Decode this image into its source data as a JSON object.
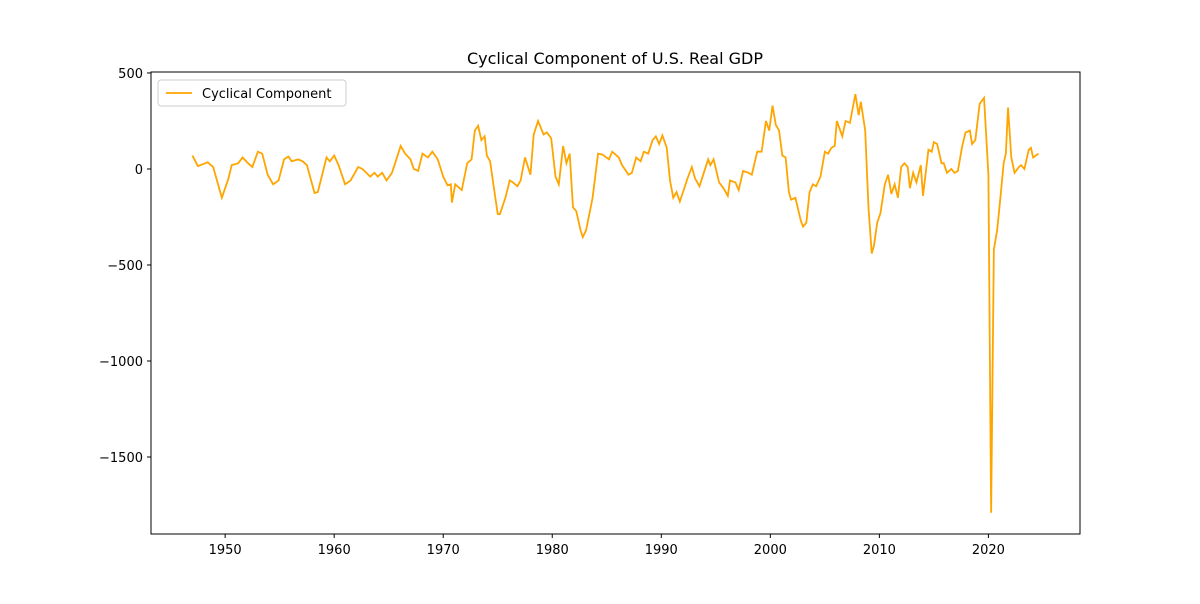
{
  "chart_data": {
    "type": "line",
    "title": "Cyclical Component of U.S. Real GDP",
    "x": [
      1947.0,
      1947.5,
      1948.4,
      1948.9,
      1949.4,
      1949.7,
      1950.3,
      1950.6,
      1951.2,
      1951.6,
      1952.1,
      1952.5,
      1953.0,
      1953.4,
      1953.9,
      1954.4,
      1954.9,
      1955.4,
      1955.8,
      1956.1,
      1956.7,
      1957.1,
      1957.5,
      1958.2,
      1958.5,
      1959.3,
      1959.6,
      1960.0,
      1960.4,
      1961.0,
      1961.5,
      1962.2,
      1962.6,
      1963.3,
      1963.7,
      1964.0,
      1964.4,
      1964.8,
      1965.3,
      1966.1,
      1966.5,
      1967.0,
      1967.3,
      1967.7,
      1968.1,
      1968.6,
      1969.0,
      1969.5,
      1970.0,
      1970.4,
      1970.7,
      1970.8,
      1971.1,
      1971.7,
      1972.2,
      1972.6,
      1972.9,
      1973.2,
      1973.5,
      1973.8,
      1974.0,
      1974.3,
      1974.6,
      1975.0,
      1975.2,
      1975.7,
      1976.1,
      1976.4,
      1976.8,
      1977.1,
      1977.5,
      1978.0,
      1978.3,
      1978.7,
      1979.2,
      1979.5,
      1979.9,
      1980.3,
      1980.6,
      1981.0,
      1981.3,
      1981.6,
      1981.9,
      1982.2,
      1982.6,
      1982.8,
      1983.1,
      1983.7,
      1984.2,
      1984.6,
      1985.2,
      1985.5,
      1986.1,
      1986.4,
      1987.0,
      1987.3,
      1987.7,
      1988.1,
      1988.4,
      1988.8,
      1989.2,
      1989.5,
      1989.8,
      1990.1,
      1990.5,
      1990.8,
      1991.1,
      1991.4,
      1991.7,
      1992.4,
      1992.8,
      1993.1,
      1993.5,
      1993.9,
      1994.3,
      1994.5,
      1994.8,
      1995.3,
      1995.7,
      1996.1,
      1996.3,
      1996.8,
      1997.1,
      1997.5,
      1998.0,
      1998.3,
      1998.8,
      1999.2,
      1999.6,
      1999.9,
      2000.2,
      2000.5,
      2000.8,
      2001.1,
      2001.4,
      2001.7,
      2001.9,
      2002.3,
      2002.8,
      2003.0,
      2003.3,
      2003.6,
      2003.9,
      2004.2,
      2004.6,
      2005.0,
      2005.3,
      2005.6,
      2005.9,
      2006.1,
      2006.6,
      2006.9,
      2007.3,
      2007.8,
      2008.1,
      2008.3,
      2008.7,
      2009.0,
      2009.3,
      2009.5,
      2009.8,
      2010.1,
      2010.5,
      2010.8,
      2011.1,
      2011.4,
      2011.7,
      2012.0,
      2012.3,
      2012.6,
      2012.8,
      2013.1,
      2013.4,
      2013.8,
      2014.0,
      2014.5,
      2014.8,
      2015.0,
      2015.3,
      2015.7,
      2015.9,
      2016.2,
      2016.6,
      2016.9,
      2017.2,
      2017.6,
      2017.9,
      2018.3,
      2018.5,
      2018.8,
      2019.2,
      2019.6,
      2020.0,
      2020.25,
      2020.5,
      2020.8,
      2021.1,
      2021.4,
      2021.6,
      2021.8,
      2022.1,
      2022.4,
      2022.8,
      2023.0,
      2023.3,
      2023.7,
      2023.9,
      2024.1,
      2024.6
    ],
    "series": [
      {
        "name": "Cyclical Component",
        "color": "#ffa500",
        "values": [
          70,
          15,
          35,
          10,
          -90,
          -150,
          -50,
          20,
          30,
          60,
          30,
          10,
          90,
          80,
          -30,
          -80,
          -60,
          50,
          65,
          40,
          50,
          40,
          20,
          -125,
          -120,
          60,
          40,
          70,
          20,
          -80,
          -60,
          10,
          0,
          -40,
          -20,
          -40,
          -20,
          -60,
          -20,
          120,
          80,
          50,
          0,
          -10,
          80,
          60,
          90,
          50,
          -40,
          -85,
          -80,
          -175,
          -80,
          -110,
          30,
          50,
          200,
          225,
          150,
          170,
          70,
          40,
          -80,
          -235,
          -235,
          -150,
          -60,
          -70,
          -90,
          -60,
          60,
          -30,
          180,
          250,
          180,
          190,
          160,
          -40,
          -80,
          120,
          30,
          80,
          -200,
          -220,
          -320,
          -355,
          -320,
          -150,
          80,
          75,
          50,
          90,
          60,
          20,
          -30,
          -20,
          60,
          40,
          90,
          80,
          150,
          170,
          130,
          175,
          110,
          -60,
          -150,
          -120,
          -170,
          -50,
          10,
          -50,
          -90,
          -20,
          50,
          20,
          50,
          -70,
          -100,
          -140,
          -60,
          -70,
          -110,
          -10,
          -20,
          -30,
          90,
          90,
          250,
          200,
          330,
          230,
          200,
          70,
          60,
          -120,
          -160,
          -150,
          -270,
          -300,
          -280,
          -120,
          -80,
          -90,
          -40,
          90,
          80,
          110,
          120,
          250,
          170,
          250,
          240,
          390,
          280,
          350,
          200,
          -200,
          -440,
          -400,
          -280,
          -230,
          -80,
          -30,
          -130,
          -80,
          -150,
          10,
          30,
          10,
          -100,
          -20,
          -70,
          20,
          -140,
          100,
          90,
          140,
          130,
          30,
          30,
          -20,
          0,
          -20,
          -10,
          120,
          190,
          200,
          130,
          150,
          340,
          370,
          -30,
          -1790,
          -420,
          -320,
          -150,
          30,
          80,
          320,
          60,
          -20,
          10,
          20,
          0,
          100,
          110,
          60,
          80
        ]
      }
    ],
    "xlim": [
      1943.2,
      2028.4
    ],
    "xticks": [
      1950,
      1960,
      1970,
      1980,
      1990,
      2000,
      2010,
      2020
    ],
    "ylim": [
      -1901,
      505
    ],
    "yticks": [
      {
        "value": -1500,
        "label": "−1500"
      },
      {
        "value": -1000,
        "label": "−1000"
      },
      {
        "value": -500,
        "label": "−500"
      },
      0,
      500
    ],
    "legend": "upper left"
  }
}
